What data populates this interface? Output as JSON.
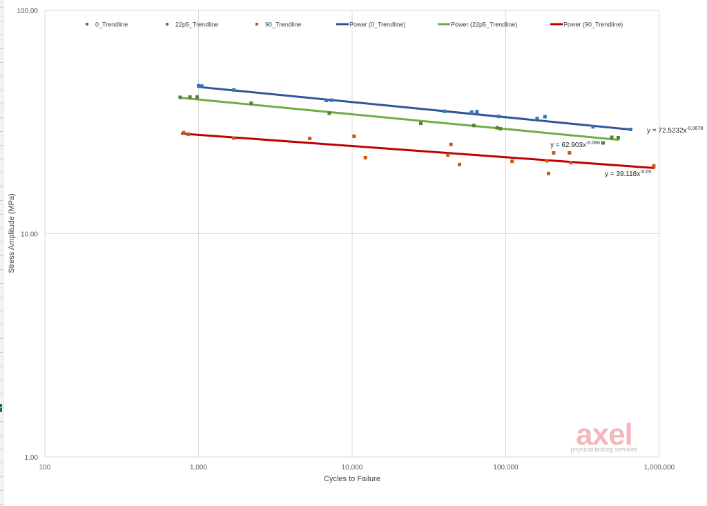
{
  "chart_data": {
    "type": "scatter",
    "title": "",
    "xlabel": "Cycles to Failure",
    "ylabel": "Stress Amplitude (MPa)",
    "xscale": "log",
    "yscale": "log",
    "xlim": [
      100,
      1000000
    ],
    "ylim": [
      1,
      100
    ],
    "x_ticks": [
      "100",
      "1,000",
      "10,000",
      "100,000",
      "1,000,000"
    ],
    "y_ticks": [
      "100.00",
      "10.00",
      "1.00"
    ],
    "grid": "vertical and horizontal major gridlines",
    "legend_position": "top",
    "legend": [
      {
        "label": "0_Trendline",
        "kind": "marker",
        "color": "#2e75b6"
      },
      {
        "label": "22p5_Trendline",
        "kind": "marker",
        "color": "#548235"
      },
      {
        "label": "90_Trendline",
        "kind": "marker",
        "color": "#c55a11"
      },
      {
        "label": "Power (0_Trendline)",
        "kind": "line",
        "color": "#2f5597"
      },
      {
        "label": "Power (22p5_Trendline)",
        "kind": "line",
        "color": "#70ad47"
      },
      {
        "label": "Power (90_Trendline)",
        "kind": "line",
        "color": "#c00000"
      }
    ],
    "series": [
      {
        "name": "0_Trendline",
        "color": "#2e75b6",
        "points": [
          [
            1000,
            46
          ],
          [
            1050,
            45.8
          ],
          [
            1700,
            44
          ],
          [
            6800,
            39.5
          ],
          [
            7300,
            39.6
          ],
          [
            40000,
            35.3
          ],
          [
            60000,
            35.0
          ],
          [
            65000,
            35.2
          ],
          [
            90000,
            33.5
          ],
          [
            160000,
            32.8
          ],
          [
            180000,
            33.4
          ],
          [
            370000,
            30.1
          ],
          [
            650000,
            29.3
          ]
        ]
      },
      {
        "name": "22p5_Trendline",
        "color": "#548235",
        "points": [
          [
            760,
            40.8
          ],
          [
            880,
            40.9
          ],
          [
            980,
            40.9
          ],
          [
            2200,
            38.4
          ],
          [
            7100,
            34.6
          ],
          [
            28000,
            31.2
          ],
          [
            62000,
            30.5
          ],
          [
            88000,
            29.8
          ],
          [
            92000,
            29.5
          ],
          [
            430000,
            25.5
          ],
          [
            490000,
            27.0
          ],
          [
            540000,
            26.9
          ]
        ]
      },
      {
        "name": "90_Trendline",
        "color": "#c55a11",
        "points": [
          [
            800,
            28.3
          ],
          [
            860,
            27.9
          ],
          [
            1700,
            26.8
          ],
          [
            5300,
            26.7
          ],
          [
            10300,
            27.3
          ],
          [
            12200,
            21.9
          ],
          [
            42000,
            22.5
          ],
          [
            44000,
            25.1
          ],
          [
            50000,
            20.4
          ],
          [
            110000,
            21.1
          ],
          [
            185000,
            21.2
          ],
          [
            190000,
            18.6
          ],
          [
            205000,
            23.0
          ],
          [
            260000,
            23.0
          ],
          [
            265000,
            20.8
          ],
          [
            920000,
            20.1
          ]
        ]
      }
    ],
    "trendlines": [
      {
        "name": "Power (0_Trendline)",
        "color": "#2f5597",
        "a": 72.5232,
        "b": -0.0678,
        "x_range": [
          1000,
          650000
        ],
        "equation": "y = 72.5232x",
        "exponent": "-0.0678"
      },
      {
        "name": "Power (22p5_Trendline)",
        "color": "#70ad47",
        "a": 62.903,
        "b": -0.066,
        "x_range": [
          750,
          540000
        ],
        "equation": "y = 62.903x",
        "exponent": "-0.066"
      },
      {
        "name": "Power (90_Trendline)",
        "color": "#c00000",
        "a": 39.118,
        "b": -0.05,
        "x_range": [
          780,
          920000
        ],
        "equation": "y = 39.118x",
        "exponent": "-0.05"
      }
    ],
    "watermark": {
      "main": "axel",
      "sub": "physical testing services"
    }
  }
}
